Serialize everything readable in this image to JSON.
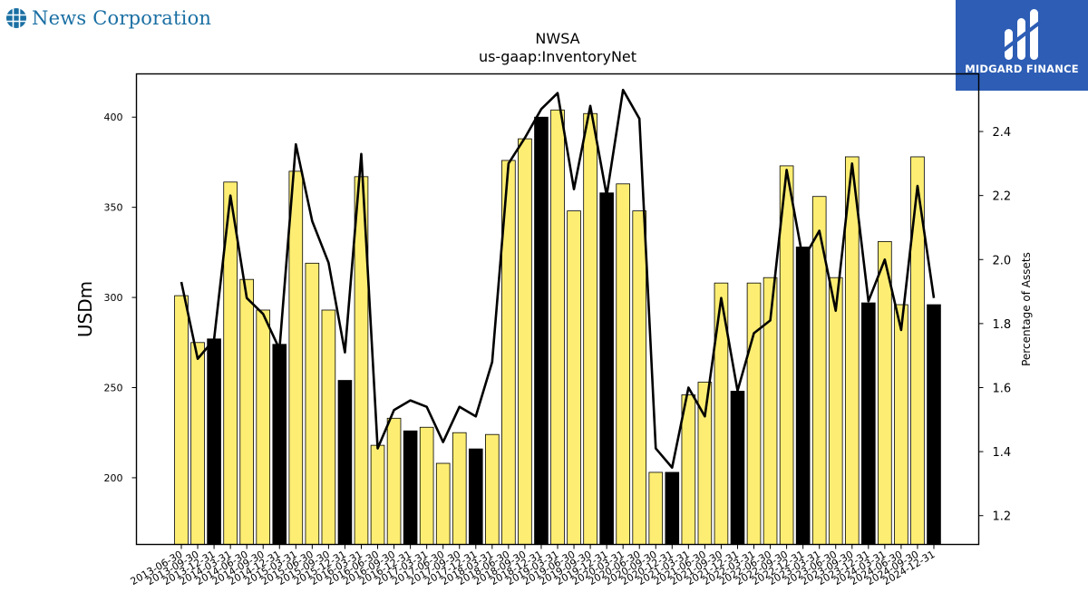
{
  "header": {
    "company_name": "News Corporation",
    "badge_text": "MIDGARD FINANCE",
    "brand_color": "#1a6fa3",
    "badge_color": "#2d5db5"
  },
  "chart_data": {
    "type": "bar",
    "title": "NWSA",
    "subtitle": "us-gaap:InventoryNet",
    "ylabel": "USDm",
    "y2label": "Percentage of Assets",
    "ylim": [
      163,
      424
    ],
    "y2lim": [
      1.11,
      2.58
    ],
    "yticks": [
      200,
      250,
      300,
      350,
      400
    ],
    "y2ticks": [
      1.2,
      1.4,
      1.6,
      1.8,
      2.0,
      2.2,
      2.4
    ],
    "bar_color": "#fdee73",
    "highlight_color": "#000000",
    "line_color": "#000000",
    "categories": [
      "2013-06-30",
      "2013-09-30",
      "2013-12-31",
      "2014-03-31",
      "2014-06-30",
      "2014-09-30",
      "2014-12-31",
      "2015-03-31",
      "2015-06-30",
      "2015-09-30",
      "2015-12-31",
      "2016-03-31",
      "2016-06-30",
      "2016-09-30",
      "2016-12-31",
      "2017-03-31",
      "2017-06-30",
      "2017-09-30",
      "2017-12-31",
      "2018-03-31",
      "2018-06-30",
      "2018-09-30",
      "2018-12-31",
      "2019-03-31",
      "2019-06-30",
      "2019-09-30",
      "2019-12-31",
      "2020-03-31",
      "2020-06-30",
      "2020-09-30",
      "2020-12-31",
      "2021-03-31",
      "2021-06-30",
      "2021-09-30",
      "2021-12-31",
      "2022-03-31",
      "2022-06-30",
      "2022-09-30",
      "2022-12-31",
      "2023-03-31",
      "2023-06-30",
      "2023-09-30",
      "2023-12-31",
      "2024-03-31",
      "2024-06-30",
      "2024-09-30",
      "2024-12-31"
    ],
    "series": [
      {
        "values": [
          301,
          275,
          277,
          364,
          310,
          293,
          274,
          370,
          319,
          293,
          254,
          367,
          218,
          233,
          226,
          228,
          208,
          225,
          216,
          224,
          376,
          388,
          400,
          404,
          348,
          402,
          358,
          363,
          348,
          203,
          203,
          246,
          253,
          308,
          248,
          308,
          311,
          373,
          328,
          356,
          311,
          378,
          297,
          331,
          296,
          378,
          296
        ],
        "highlight": [
          false,
          false,
          true,
          false,
          false,
          false,
          true,
          false,
          false,
          false,
          true,
          false,
          false,
          false,
          true,
          false,
          false,
          false,
          true,
          false,
          false,
          false,
          true,
          false,
          false,
          false,
          true,
          false,
          false,
          false,
          true,
          false,
          false,
          false,
          true,
          false,
          false,
          false,
          true,
          false,
          false,
          false,
          true,
          false,
          false,
          false,
          true
        ]
      },
      {
        "values": [
          1.93,
          1.69,
          1.75,
          2.2,
          1.88,
          1.83,
          1.72,
          2.36,
          2.12,
          1.99,
          1.71,
          2.33,
          1.41,
          1.53,
          1.56,
          1.54,
          1.43,
          1.54,
          1.51,
          1.68,
          2.3,
          2.38,
          2.47,
          2.52,
          2.22,
          2.48,
          2.2,
          2.53,
          2.44,
          1.41,
          1.35,
          1.6,
          1.51,
          1.88,
          1.59,
          1.77,
          1.81,
          2.28,
          2.0,
          2.09,
          1.84,
          2.3,
          1.87,
          2.0,
          1.78,
          2.23,
          1.88
        ]
      }
    ]
  }
}
